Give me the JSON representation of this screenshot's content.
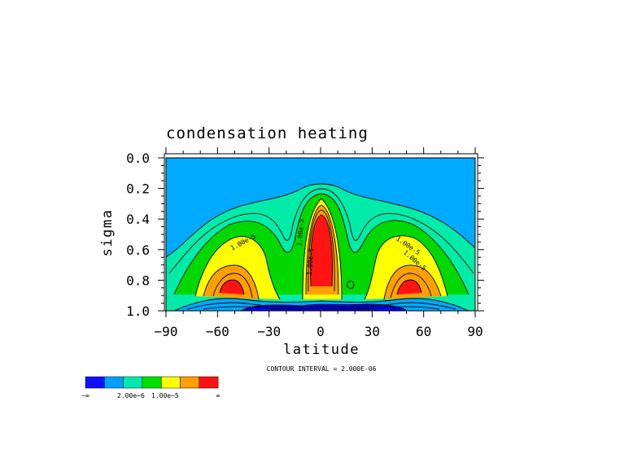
{
  "chart_data": {
    "type": "contour",
    "title": "condensation heating",
    "xlabel": "latitude",
    "ylabel": "sigma",
    "xlim": [
      -90,
      90
    ],
    "ylim": [
      1.0,
      0.0
    ],
    "x_ticks": [
      -90,
      -60,
      -30,
      0,
      30,
      60,
      90
    ],
    "x_tick_labels": [
      "−90",
      "−60",
      "−30",
      "0",
      "30",
      "60",
      "90"
    ],
    "y_ticks": [
      0.0,
      0.2,
      0.4,
      0.6,
      0.8,
      1.0
    ],
    "y_tick_labels": [
      "0.0",
      "0.2",
      "0.4",
      "0.6",
      "0.8",
      "1.0"
    ],
    "contour_interval_text": "CONTOUR INTERVAL = 2.000E-06",
    "contour_labels": [
      "1.00e-5",
      "1.00e-5",
      "1.00e-5",
      "1.00e-5",
      "1.00e-5"
    ],
    "colorbar": {
      "colors": [
        "#1010ff",
        "#00a0ff",
        "#00e8b0",
        "#00e000",
        "#ffff00",
        "#ffa000",
        "#ff1010"
      ],
      "labels": [
        "−∞",
        "2.00e−6",
        "1.00e−5",
        "∞"
      ]
    },
    "field_colors": {
      "background": "#00aaff",
      "level1": "#00eca8",
      "level2": "#00d800",
      "level3": "#ffff00",
      "level4": "#ffa000",
      "level5": "#ff1414",
      "negative_light": "#00aaff",
      "negative_dark": "#0000ff"
    },
    "features": [
      {
        "name": "tropical maximum",
        "lat": 0,
        "sigma_top": 0.28,
        "sigma_bottom": 0.92
      },
      {
        "name": "southern midlatitude maximum",
        "lat": -50,
        "sigma_top": 0.55,
        "sigma_bottom": 0.95
      },
      {
        "name": "northern midlatitude maximum",
        "lat": 50,
        "sigma_top": 0.55,
        "sigma_bottom": 0.95
      }
    ]
  }
}
